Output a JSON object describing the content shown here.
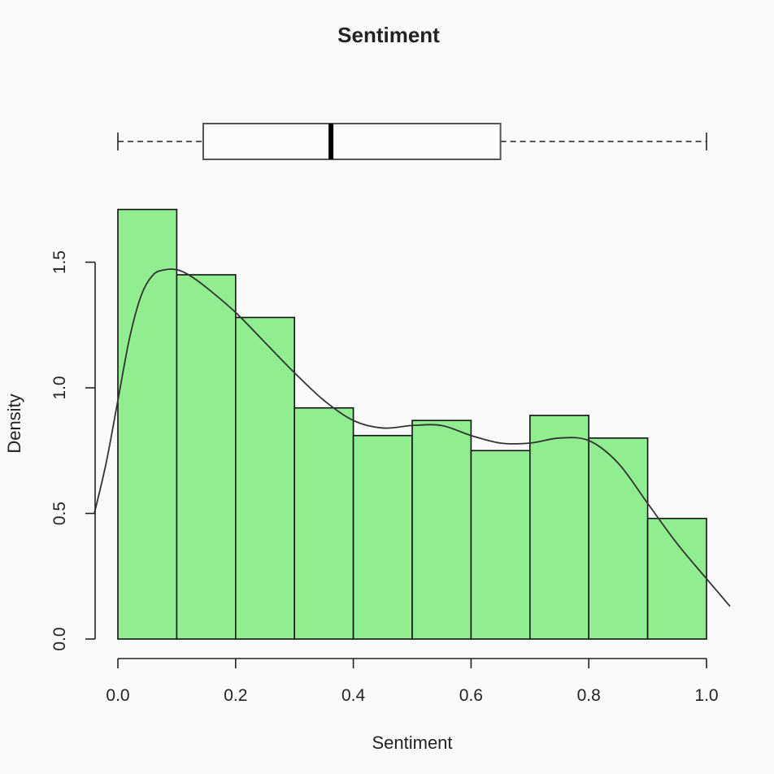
{
  "chart_data": {
    "type": "bar",
    "title": "Sentiment",
    "xlabel": "Sentiment",
    "ylabel": "Density",
    "xlim": [
      0,
      1
    ],
    "ylim": [
      0,
      1.72
    ],
    "x_ticks": [
      "0.0",
      "0.2",
      "0.4",
      "0.6",
      "0.8",
      "1.0"
    ],
    "y_ticks": [
      "0.0",
      "0.5",
      "1.0",
      "1.5"
    ],
    "bins": [
      {
        "from": 0.0,
        "to": 0.1,
        "density": 1.71
      },
      {
        "from": 0.1,
        "to": 0.2,
        "density": 1.45
      },
      {
        "from": 0.2,
        "to": 0.3,
        "density": 1.28
      },
      {
        "from": 0.3,
        "to": 0.4,
        "density": 0.92
      },
      {
        "from": 0.4,
        "to": 0.5,
        "density": 0.81
      },
      {
        "from": 0.5,
        "to": 0.6,
        "density": 0.87
      },
      {
        "from": 0.6,
        "to": 0.7,
        "density": 0.75
      },
      {
        "from": 0.7,
        "to": 0.8,
        "density": 0.89
      },
      {
        "from": 0.8,
        "to": 0.9,
        "density": 0.8
      },
      {
        "from": 0.9,
        "to": 1.0,
        "density": 0.48
      }
    ],
    "bar_color": "#90ee90",
    "density_curve": {
      "x": [
        -0.04,
        -0.02,
        0.0,
        0.02,
        0.04,
        0.06,
        0.08,
        0.1,
        0.12,
        0.15,
        0.2,
        0.25,
        0.3,
        0.35,
        0.4,
        0.45,
        0.5,
        0.55,
        0.6,
        0.65,
        0.7,
        0.75,
        0.8,
        0.85,
        0.9,
        0.95,
        1.0,
        1.04
      ],
      "y": [
        0.5,
        0.7,
        0.95,
        1.2,
        1.37,
        1.45,
        1.47,
        1.47,
        1.45,
        1.4,
        1.3,
        1.18,
        1.06,
        0.95,
        0.87,
        0.84,
        0.85,
        0.85,
        0.81,
        0.78,
        0.78,
        0.8,
        0.79,
        0.7,
        0.54,
        0.38,
        0.24,
        0.13
      ]
    },
    "boxplot": {
      "min": 0.0,
      "q1": 0.145,
      "median": 0.362,
      "q3": 0.65,
      "max": 1.0
    },
    "grid": false,
    "legend": "none"
  }
}
